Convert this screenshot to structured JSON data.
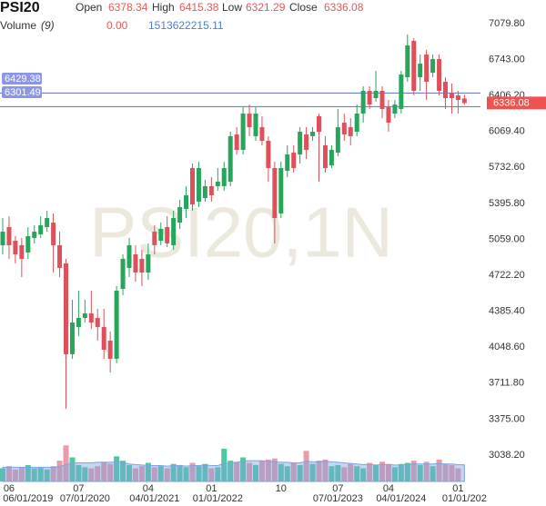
{
  "chart_data": {
    "type": "candlestick",
    "title": "PSI20",
    "watermark": "PSI20,1N",
    "labels": {
      "open": "Open",
      "high": "High",
      "low": "Low",
      "close": "Close",
      "volume": "Volume",
      "volume_period": "(9)"
    },
    "last_volume_label": "0.00",
    "up_color": "#26a65b",
    "down_color": "#e0505a",
    "volume_up_color": "#4cc9a0",
    "volume_down_color": "#ea9aab",
    "volume_ma_color": "#7fa3de",
    "hline_color": "#6f7fd0",
    "last_price_color": "#ef5350",
    "open": [
      5004,
      5174,
      5046,
      5004,
      4936,
      5072,
      5106,
      5174,
      5216,
      5004,
      4833,
      3983,
      4238,
      4323,
      4366,
      4323,
      4238,
      4110,
      3940,
      4595,
      4791,
      4918,
      4876,
      4748,
      5131,
      5046,
      5174,
      5004,
      5216,
      5344,
      5727,
      5412,
      5446,
      5557,
      5557,
      5557,
      5599,
      6042,
      5897,
      6237,
      6025,
      6110,
      5982,
      5727,
      5301,
      5701,
      5871,
      5854,
      6042,
      6025,
      6212,
      5940,
      5752,
      5871,
      6152,
      6110,
      6067,
      6237,
      6450,
      6382,
      6450,
      6297,
      6237,
      6280,
      6578,
      6918,
      6578,
      6790,
      6620,
      6748,
      6535,
      6425,
      6408,
      6378.34
    ],
    "high": [
      5259,
      5276,
      5089,
      5072,
      5174,
      5191,
      5276,
      5327,
      5301,
      5131,
      4876,
      4493,
      4578,
      4493,
      4578,
      4408,
      4408,
      4195,
      4621,
      4918,
      5072,
      5004,
      4961,
      5021,
      5191,
      5216,
      5276,
      5327,
      5429,
      5557,
      5769,
      5786,
      5616,
      5642,
      5727,
      5786,
      6067,
      6110,
      6297,
      6322,
      6297,
      6212,
      6025,
      5786,
      5786,
      5940,
      5940,
      6110,
      6110,
      6110,
      6237,
      6025,
      5940,
      6280,
      6237,
      6195,
      6322,
      6493,
      6493,
      6637,
      6493,
      6365,
      6365,
      6637,
      6978,
      6944,
      6790,
      6833,
      6790,
      6790,
      6578,
      6518,
      6450,
      6415.38
    ],
    "low": [
      4918,
      4876,
      4833,
      4706,
      4876,
      5021,
      5072,
      5131,
      4748,
      4706,
      3472,
      3940,
      4153,
      4280,
      4221,
      4110,
      3940,
      3812,
      3897,
      4536,
      4706,
      4663,
      4621,
      4680,
      4918,
      5004,
      4987,
      4961,
      5157,
      5259,
      5327,
      5361,
      5412,
      5412,
      5514,
      5514,
      5557,
      5854,
      5854,
      6025,
      5982,
      5940,
      5599,
      5021,
      5259,
      5642,
      5684,
      5769,
      5812,
      5982,
      5599,
      5684,
      5727,
      5837,
      5982,
      5940,
      6025,
      6152,
      6280,
      6348,
      6195,
      6067,
      6195,
      6237,
      6535,
      6408,
      6450,
      6365,
      6578,
      6408,
      6280,
      6237,
      6237,
      6321.29
    ],
    "close": [
      5131,
      5004,
      4918,
      4876,
      5089,
      5131,
      5191,
      5259,
      5004,
      4791,
      3983,
      4280,
      4323,
      4366,
      4280,
      4238,
      4025,
      3940,
      4578,
      4876,
      5004,
      4748,
      4748,
      4918,
      5004,
      5157,
      5021,
      5259,
      5361,
      5472,
      5386,
      5727,
      5557,
      5472,
      5599,
      5727,
      6025,
      5897,
      6237,
      6110,
      6237,
      5982,
      5727,
      5259,
      5727,
      5854,
      5727,
      6067,
      5897,
      6067,
      6067,
      5727,
      5897,
      6110,
      6042,
      6025,
      6237,
      6450,
      6322,
      6450,
      6280,
      6152,
      6322,
      6603,
      6876,
      6450,
      6705,
      6535,
      6748,
      6450,
      6382,
      6382,
      6365,
      6336.08
    ],
    "volume": [
      1200000000.0,
      1400000000.0,
      1100000000.0,
      1300000000.0,
      1500000000.0,
      1200000000.0,
      1300000000.0,
      1100000000.0,
      1400000000.0,
      1900000000.0,
      3300000000.0,
      2200000000.0,
      1500000000.0,
      1300000000.0,
      1200000000.0,
      1400000000.0,
      1800000000.0,
      1600000000.0,
      2300000000.0,
      1900000000.0,
      1500000000.0,
      1200000000.0,
      1400000000.0,
      1700000000.0,
      1300000000.0,
      1400000000.0,
      1200000000.0,
      1600000000.0,
      1500000000.0,
      1300000000.0,
      1700000000.0,
      1400000000.0,
      1600000000.0,
      1200000000.0,
      1300000000.0,
      3000000000.0,
      1900000000.0,
      1800000000.0,
      2200000000.0,
      1700000000.0,
      1500000000.0,
      1900000000.0,
      2000000000.0,
      2100000000.0,
      1600000000.0,
      1400000000.0,
      1700000000.0,
      1500000000.0,
      2800000000.0,
      1600000000.0,
      1900000000.0,
      2000000000.0,
      1400000000.0,
      1500000000.0,
      1300000000.0,
      1600000000.0,
      1400000000.0,
      1200000000.0,
      1700000000.0,
      1500000000.0,
      1800000000.0,
      1600000000.0,
      1300000000.0,
      1600000000.0,
      1700000000.0,
      1900000000.0,
      1500000000.0,
      1800000000.0,
      1400000000.0,
      2000000000.0,
      1600000000.0,
      1500000000.0,
      1200000000.0,
      0
    ],
    "volume_ma": [
      1300000000.0,
      1300000000.0,
      1300000000.0,
      1300000000.0,
      1300000000.0,
      1300000000.0,
      1300000000.0,
      1300000000.0,
      1300000000.0,
      1350000000.0,
      1550000000.0,
      1650000000.0,
      1700000000.0,
      1700000000.0,
      1700000000.0,
      1750000000.0,
      1750000000.0,
      1750000000.0,
      1800000000.0,
      1750000000.0,
      1600000000.0,
      1550000000.0,
      1500000000.0,
      1450000000.0,
      1450000000.0,
      1450000000.0,
      1400000000.0,
      1450000000.0,
      1450000000.0,
      1400000000.0,
      1450000000.0,
      1450000000.0,
      1500000000.0,
      1450000000.0,
      1450000000.0,
      1650000000.0,
      1700000000.0,
      1750000000.0,
      1850000000.0,
      1900000000.0,
      1900000000.0,
      1900000000.0,
      1850000000.0,
      1800000000.0,
      1750000000.0,
      1750000000.0,
      1700000000.0,
      1700000000.0,
      1850000000.0,
      1800000000.0,
      1800000000.0,
      1850000000.0,
      1800000000.0,
      1750000000.0,
      1700000000.0,
      1650000000.0,
      1600000000.0,
      1550000000.0,
      1550000000.0,
      1500000000.0,
      1550000000.0,
      1550000000.0,
      1500000000.0,
      1500000000.0,
      1550000000.0,
      1600000000.0,
      1600000000.0,
      1600000000.0,
      1600000000.0,
      1650000000.0,
      1600000000.0,
      1600000000.0,
      1550000000.0,
      1513622215.11
    ],
    "volume_lim": [
      0,
      44000000000.0
    ],
    "ylim": [
      2791,
      7301
    ],
    "yticks": [
      {
        "value": 3038.2,
        "label": "3038.20"
      },
      {
        "value": 3375,
        "label": "3375.00"
      },
      {
        "value": 3711.8,
        "label": "3711.80"
      },
      {
        "value": 4048.6,
        "label": "4048.60"
      },
      {
        "value": 4385.4,
        "label": "4385.40"
      },
      {
        "value": 4722.2,
        "label": "4722.20"
      },
      {
        "value": 5059,
        "label": "5059.00"
      },
      {
        "value": 5395.8,
        "label": "5395.80"
      },
      {
        "value": 5732.6,
        "label": "5732.60"
      },
      {
        "value": 6069.4,
        "label": "6069.40"
      },
      {
        "value": 6406.2,
        "label": "6406.20"
      },
      {
        "value": 6743,
        "label": "6743.00"
      },
      {
        "value": 7079.8,
        "label": "7079.80"
      }
    ],
    "xticks_top": [
      {
        "value": 1,
        "label": "06"
      },
      {
        "value": 12,
        "label": "07"
      },
      {
        "value": 23,
        "label": "04"
      },
      {
        "value": 33,
        "label": "01"
      },
      {
        "value": 44,
        "label": "10"
      },
      {
        "value": 53,
        "label": "07"
      },
      {
        "value": 61,
        "label": "04"
      },
      {
        "value": 72,
        "label": "01"
      }
    ],
    "xticks_bottom": [
      {
        "value": 4,
        "label": "06/01/2019"
      },
      {
        "value": 13,
        "label": "07/01/2020"
      },
      {
        "value": 24,
        "label": "04/01/2021"
      },
      {
        "value": 34,
        "label": "01/01/2022"
      },
      {
        "value": 53,
        "label": "07/01/2023"
      },
      {
        "value": 63,
        "label": "04/01/2024"
      },
      {
        "value": 73,
        "label": "01/01/202"
      }
    ],
    "hlines": [
      6429.38,
      6301.49
    ]
  }
}
